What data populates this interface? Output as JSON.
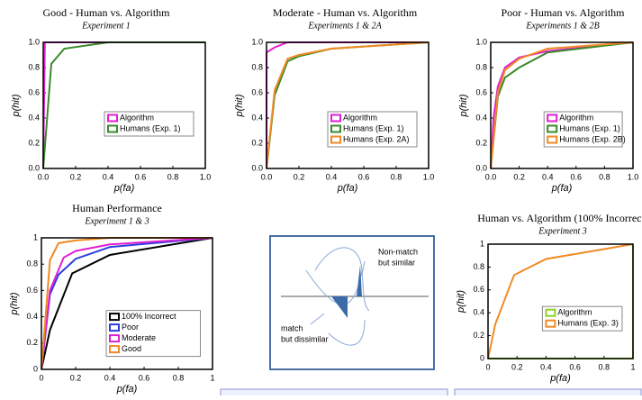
{
  "chart_data": [
    {
      "type": "line",
      "title": "Good - Human vs. Algorithm",
      "subtitle": "Experiment 1",
      "x_label": "p(fa)",
      "y_label": "p(hit)",
      "xlim": [
        0,
        1
      ],
      "ylim": [
        0,
        1
      ],
      "xticks": [
        {
          "value": 0,
          "label": "0.0"
        },
        0.2,
        0.4,
        0.6,
        0.8,
        {
          "value": 1,
          "label": "1.0"
        }
      ],
      "yticks": [
        {
          "value": 0,
          "label": "0.0"
        },
        0.2,
        0.4,
        0.6,
        0.8,
        {
          "value": 1,
          "label": "1.0"
        }
      ],
      "series": [
        {
          "name": "Algorithm",
          "color": "#e01fd0",
          "x": [
            0,
            0.01,
            1
          ],
          "values": [
            0,
            1,
            1
          ]
        },
        {
          "name": "Humans (Exp. 1)",
          "color": "#3a8a2a",
          "x": [
            0,
            0.05,
            0.13,
            0.4,
            1
          ],
          "values": [
            0,
            0.83,
            0.95,
            1,
            1
          ]
        }
      ]
    },
    {
      "type": "line",
      "title": "Moderate  - Human vs. Algorithm",
      "subtitle": "Experiments 1 & 2A",
      "x_label": "p(fa)",
      "y_label": "p(hit)",
      "xlim": [
        0,
        1
      ],
      "ylim": [
        0,
        1
      ],
      "xticks": [
        {
          "value": 0,
          "label": "0.0"
        },
        0.2,
        0.4,
        0.6,
        0.8,
        {
          "value": 1,
          "label": "1.0"
        }
      ],
      "yticks": [
        {
          "value": 0,
          "label": "0.0"
        },
        0.2,
        0.4,
        0.6,
        0.8,
        {
          "value": 1,
          "label": "1.0"
        }
      ],
      "series": [
        {
          "name": "Algorithm",
          "color": "#e01fd0",
          "x": [
            0,
            0,
            0.05,
            0.13,
            1
          ],
          "values": [
            0,
            0.92,
            0.96,
            1,
            1
          ]
        },
        {
          "name": "Humans (Exp. 1)",
          "color": "#3a8a2a",
          "x": [
            0,
            0.05,
            0.13,
            0.2,
            0.4,
            1
          ],
          "values": [
            0,
            0.58,
            0.85,
            0.89,
            0.95,
            1
          ]
        },
        {
          "name": "Humans (Exp. 2A)",
          "color": "#f08a24",
          "x": [
            0,
            0.05,
            0.13,
            0.2,
            0.4,
            1
          ],
          "values": [
            0,
            0.62,
            0.87,
            0.9,
            0.95,
            1
          ]
        }
      ]
    },
    {
      "type": "line",
      "title": "Poor  - Human vs. Algorithm",
      "subtitle": "Experiments 1 & 2B",
      "x_label": "p(fa)",
      "y_label": "p(hit)",
      "xlim": [
        0,
        1
      ],
      "ylim": [
        0,
        1
      ],
      "xticks": [
        {
          "value": 0,
          "label": "0.0"
        },
        0.2,
        0.4,
        0.6,
        0.8,
        {
          "value": 1,
          "label": "1.0"
        }
      ],
      "yticks": [
        {
          "value": 0,
          "label": "0.0"
        },
        0.2,
        0.4,
        0.6,
        0.8,
        {
          "value": 1,
          "label": "1.0"
        }
      ],
      "series": [
        {
          "name": "Algorithm",
          "color": "#e01fd0",
          "x": [
            0,
            0.02,
            0.05,
            0.1,
            0.2,
            0.4,
            1
          ],
          "values": [
            0,
            0.4,
            0.65,
            0.8,
            0.88,
            0.93,
            1
          ]
        },
        {
          "name": "Humans (Exp. 1)",
          "color": "#3a8a2a",
          "x": [
            0,
            0.05,
            0.1,
            0.2,
            0.4,
            1
          ],
          "values": [
            0,
            0.57,
            0.72,
            0.8,
            0.92,
            1
          ]
        },
        {
          "name": "Humans (Exp. 2B)",
          "color": "#f08a24",
          "x": [
            0,
            0.05,
            0.1,
            0.2,
            0.4,
            1
          ],
          "values": [
            0,
            0.6,
            0.78,
            0.87,
            0.95,
            1
          ]
        }
      ]
    },
    {
      "type": "line",
      "title": "Human Performance",
      "subtitle": "Experiment 1 & 3",
      "x_label": "p(fa)",
      "y_label": "p(hit)",
      "xlim": [
        0,
        1
      ],
      "ylim": [
        0,
        1
      ],
      "xticks": [
        0,
        0.2,
        0.4,
        0.6,
        0.8,
        1
      ],
      "yticks": [
        0,
        0.2,
        0.4,
        0.6,
        0.8,
        1
      ],
      "series": [
        {
          "name": "100% Incorrect",
          "color": "#000000",
          "x": [
            0,
            0.05,
            0.18,
            0.4,
            1
          ],
          "values": [
            0,
            0.3,
            0.73,
            0.87,
            1
          ]
        },
        {
          "name": "Poor",
          "color": "#2a3ee0",
          "x": [
            0,
            0.05,
            0.1,
            0.2,
            0.4,
            1
          ],
          "values": [
            0,
            0.57,
            0.72,
            0.84,
            0.93,
            1
          ]
        },
        {
          "name": "Moderate",
          "color": "#e01fd0",
          "x": [
            0,
            0.05,
            0.13,
            0.2,
            0.4,
            1
          ],
          "values": [
            0,
            0.6,
            0.85,
            0.9,
            0.95,
            1
          ]
        },
        {
          "name": "Good",
          "color": "#f08a24",
          "x": [
            0,
            0.05,
            0.1,
            0.2,
            0.4,
            1
          ],
          "values": [
            0,
            0.83,
            0.96,
            0.98,
            1,
            1
          ]
        }
      ]
    },
    {
      "type": "line",
      "title": "Human vs. Algorithm (100% Incorrect)",
      "subtitle": "Experiment 3",
      "x_label": "p(fa)",
      "y_label": "p(hit)",
      "xlim": [
        0,
        1
      ],
      "ylim": [
        0,
        1
      ],
      "xticks": [
        0,
        0.2,
        0.4,
        0.6,
        0.8,
        1
      ],
      "yticks": [
        0,
        0.2,
        0.4,
        0.6,
        0.8,
        1
      ],
      "series": [
        {
          "name": "Algorithm",
          "color": "#8fcf2a",
          "x": [
            0,
            1,
            1
          ],
          "values": [
            0,
            0,
            1
          ]
        },
        {
          "name": "Humans (Exp. 3)",
          "color": "#f08a24",
          "x": [
            0,
            0.05,
            0.18,
            0.4,
            1
          ],
          "values": [
            0,
            0.3,
            0.73,
            0.87,
            1
          ]
        }
      ]
    }
  ],
  "diagram": {
    "labels": [
      "Non-match",
      "but similar",
      "match",
      "but dissimilar"
    ]
  }
}
